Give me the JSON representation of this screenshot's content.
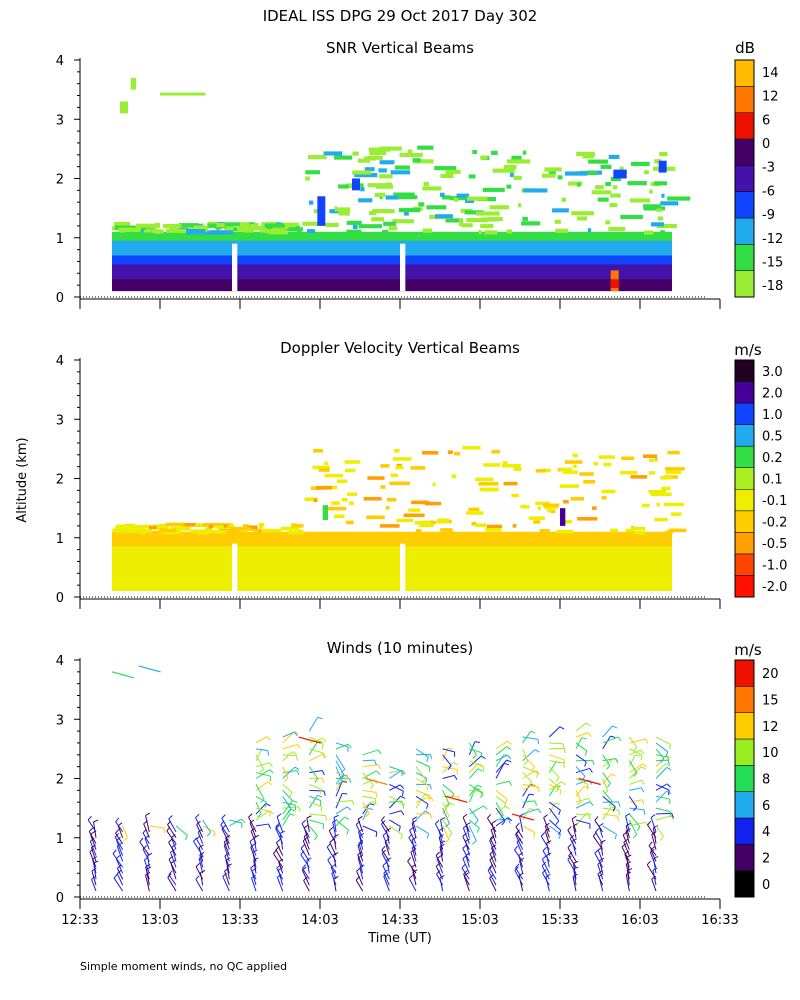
{
  "title": "IDEAL ISS DPG  29 Oct 2017 Day 302",
  "ylabel": "Altitude (km)",
  "xlabel": "Time (UT)",
  "footnote": "Simple moment winds, no QC applied",
  "x_ticks": [
    "12:33",
    "13:03",
    "13:33",
    "14:03",
    "14:33",
    "15:03",
    "15:33",
    "16:03",
    "16:33"
  ],
  "y_ticks": [
    "0",
    "1",
    "2",
    "3",
    "4"
  ],
  "colors": {
    "snr": [
      "#99ee33",
      "#33dd44",
      "#22aaee",
      "#1144ff",
      "#4411aa",
      "#440066",
      "#ee1100",
      "#ff7700",
      "#ffbb00"
    ],
    "doppler": [
      "#ff1100",
      "#ff4400",
      "#ffa000",
      "#ffcc00",
      "#eeee00",
      "#aaee22",
      "#33dd44",
      "#22aaee",
      "#1144ff",
      "#440099",
      "#220022"
    ],
    "winds": [
      "#000000",
      "#440066",
      "#1122ee",
      "#22aaee",
      "#22dd55",
      "#99ee22",
      "#ffcc00",
      "#ff7700",
      "#ee1100"
    ]
  },
  "chart_data": [
    {
      "type": "heatmap",
      "title": "SNR Vertical Beams",
      "units": "dB",
      "xlim": [
        "12:33",
        "16:33"
      ],
      "ylim": [
        0,
        4
      ],
      "colorbar_ticks": [
        "14",
        "12",
        "6",
        "0",
        "-3",
        "-6",
        "-9",
        "-12",
        "-15",
        "-18"
      ],
      "colorbar_levels": [
        -18,
        -15,
        -12,
        -9,
        -6,
        -3,
        0,
        6,
        12,
        14
      ],
      "layers": [
        {
          "time_start": "12:45",
          "time_end": "16:15",
          "alt_low": 0.1,
          "alt_high": 0.2,
          "value": -3
        },
        {
          "time_start": "12:45",
          "time_end": "16:15",
          "alt_low": 0.2,
          "alt_high": 0.35,
          "value": -6
        },
        {
          "time_start": "12:45",
          "time_end": "16:15",
          "alt_low": 0.35,
          "alt_high": 0.55,
          "value": -9
        },
        {
          "time_start": "12:45",
          "time_end": "16:15",
          "alt_low": 0.55,
          "alt_high": 0.85,
          "value": -12
        },
        {
          "time_start": "12:45",
          "time_end": "16:15",
          "alt_low": 0.85,
          "alt_high": 1.1,
          "value": -15
        },
        {
          "time_start": "13:55",
          "time_end": "16:15",
          "alt_low": 1.4,
          "alt_high": 2.5,
          "value": -18
        },
        {
          "time_start": "15:53",
          "time_end": "15:55",
          "alt_low": 0.1,
          "alt_high": 0.4,
          "value": 6
        }
      ]
    },
    {
      "type": "heatmap",
      "title": "Doppler Velocity Vertical Beams",
      "units": "m/s",
      "xlim": [
        "12:33",
        "16:33"
      ],
      "ylim": [
        0,
        4
      ],
      "colorbar_ticks": [
        "3.0",
        "2.0",
        "1.0",
        "0.5",
        "0.2",
        "0.1",
        "-0.1",
        "-0.2",
        "-0.5",
        "-1.0",
        "-2.0"
      ],
      "colorbar_levels": [
        -2.0,
        -1.0,
        -0.5,
        -0.2,
        -0.1,
        0.1,
        0.2,
        0.5,
        1.0,
        2.0,
        3.0
      ],
      "layers": [
        {
          "time_start": "12:45",
          "time_end": "16:15",
          "alt_low": 0.1,
          "alt_high": 0.8,
          "value": 0.05
        },
        {
          "time_start": "12:45",
          "time_end": "16:15",
          "alt_low": 0.8,
          "alt_high": 1.1,
          "value": -0.15
        },
        {
          "time_start": "14:00",
          "time_end": "16:15",
          "alt_low": 1.3,
          "alt_high": 2.5,
          "value": -0.15
        }
      ]
    },
    {
      "type": "scatter",
      "title": "Winds (10 minutes)",
      "units": "m/s",
      "xlim": [
        "12:33",
        "16:33"
      ],
      "ylim": [
        0,
        4
      ],
      "colorbar_ticks": [
        "20",
        "15",
        "12",
        "10",
        "8",
        "6",
        "4",
        "2",
        "0"
      ],
      "colorbar_levels": [
        0,
        2,
        4,
        6,
        8,
        10,
        12,
        15,
        20
      ],
      "profile_times": [
        "12:39",
        "12:49",
        "12:59",
        "13:09",
        "13:19",
        "13:29",
        "13:39",
        "13:49",
        "13:59",
        "14:09",
        "14:19",
        "14:29",
        "14:39",
        "14:49",
        "14:59",
        "15:09",
        "15:19",
        "15:29",
        "15:39",
        "15:49",
        "15:59",
        "16:09"
      ],
      "profile_top_km": [
        1.1,
        1.2,
        1.2,
        1.2,
        1.4,
        1.4,
        2.7,
        2.8,
        2.9,
        2.7,
        2.5,
        2.3,
        2.6,
        2.6,
        2.7,
        2.6,
        2.8,
        2.8,
        2.9,
        2.8,
        2.8,
        2.8
      ],
      "barbs": [
        {
          "time": "12:45",
          "alt_km": 3.8,
          "speed": 8
        },
        {
          "time": "12:55",
          "alt_km": 3.9,
          "speed": 6
        },
        {
          "time": "13:55",
          "alt_km": 2.7,
          "speed": 20
        },
        {
          "time": "14:20",
          "alt_km": 2.0,
          "speed": 15
        },
        {
          "time": "14:50",
          "alt_km": 1.7,
          "speed": 20
        },
        {
          "time": "15:15",
          "alt_km": 1.4,
          "speed": 20
        },
        {
          "time": "15:40",
          "alt_km": 2.0,
          "speed": 20
        }
      ]
    }
  ]
}
